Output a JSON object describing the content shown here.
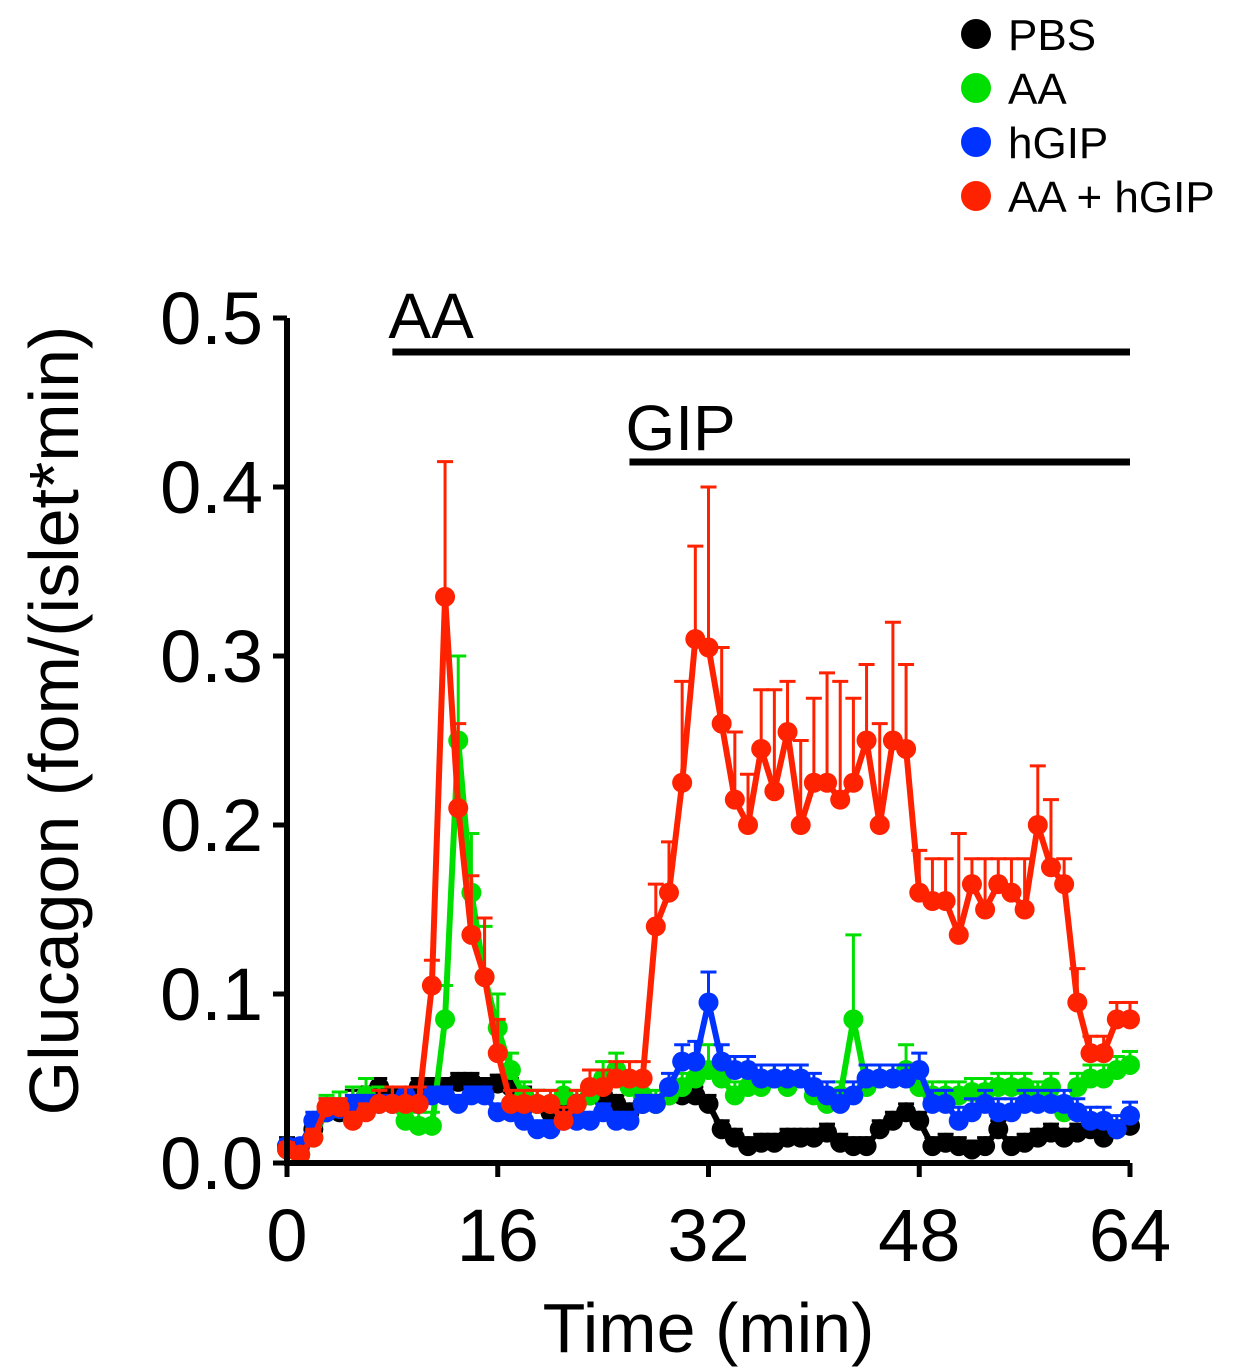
{
  "chart_data": {
    "type": "line",
    "title": "",
    "xlabel": "Time (min)",
    "ylabel": "Glucagon (fom/(islet*min)",
    "xlim": [
      0,
      64
    ],
    "ylim": [
      0,
      0.5
    ],
    "x_ticks": [
      "0",
      "16",
      "32",
      "48",
      "64"
    ],
    "y_ticks": [
      "0.0",
      "0.1",
      "0.2",
      "0.3",
      "0.4",
      "0.5"
    ],
    "grid": false,
    "legend_position": "top-right",
    "treatment_bars": [
      {
        "label": "AA",
        "start": 8,
        "end": 64
      },
      {
        "label": "GIP",
        "start": 26,
        "end": 64
      }
    ],
    "series": [
      {
        "name": "PBS",
        "color": "#000000",
        "x": [
          0,
          1,
          2,
          3,
          4,
          5,
          6,
          7,
          8,
          9,
          10,
          11,
          12,
          13,
          14,
          15,
          16,
          17,
          18,
          19,
          20,
          21,
          22,
          23,
          24,
          25,
          26,
          27,
          28,
          29,
          30,
          31,
          32,
          33,
          34,
          35,
          36,
          37,
          38,
          39,
          40,
          41,
          42,
          43,
          44,
          45,
          46,
          47,
          48,
          49,
          50,
          51,
          52,
          53,
          54,
          55,
          56,
          57,
          58,
          59,
          60,
          61,
          62,
          63,
          64
        ],
        "y": [
          0.01,
          0.005,
          0.02,
          0.03,
          0.03,
          0.035,
          0.04,
          0.045,
          0.04,
          0.04,
          0.045,
          0.045,
          0.045,
          0.048,
          0.048,
          0.045,
          0.047,
          0.045,
          0.04,
          0.035,
          0.03,
          0.035,
          0.035,
          0.04,
          0.04,
          0.035,
          0.03,
          0.035,
          0.035,
          0.04,
          0.04,
          0.04,
          0.035,
          0.02,
          0.015,
          0.01,
          0.012,
          0.012,
          0.015,
          0.015,
          0.015,
          0.018,
          0.012,
          0.01,
          0.01,
          0.02,
          0.025,
          0.03,
          0.025,
          0.01,
          0.012,
          0.01,
          0.008,
          0.01,
          0.02,
          0.01,
          0.012,
          0.015,
          0.018,
          0.015,
          0.018,
          0.02,
          0.015,
          0.02,
          0.022
        ],
        "err": [
          0.005,
          0.005,
          0.005,
          0.008,
          0.008,
          0.008,
          0.005,
          0.005,
          0.005,
          0.005,
          0.005,
          0.005,
          0.005,
          0.005,
          0.005,
          0.005,
          0.005,
          0.005,
          0.005,
          0.008,
          0.008,
          0.005,
          0.005,
          0.005,
          0.005,
          0.005,
          0.005,
          0.005,
          0.005,
          0.005,
          0.005,
          0.005,
          0.005,
          0.005,
          0.005,
          0.005,
          0.005,
          0.005,
          0.005,
          0.005,
          0.005,
          0.005,
          0.005,
          0.005,
          0.005,
          0.005,
          0.005,
          0.005,
          0.005,
          0.005,
          0.005,
          0.005,
          0.005,
          0.005,
          0.005,
          0.005,
          0.005,
          0.005,
          0.005,
          0.005,
          0.005,
          0.005,
          0.005,
          0.005,
          0.005
        ]
      },
      {
        "name": "AA",
        "color": "#00e000",
        "x": [
          0,
          1,
          2,
          3,
          4,
          5,
          6,
          7,
          8,
          9,
          10,
          11,
          12,
          13,
          14,
          15,
          16,
          17,
          18,
          19,
          20,
          21,
          22,
          23,
          24,
          25,
          26,
          27,
          28,
          29,
          30,
          31,
          32,
          33,
          34,
          35,
          36,
          37,
          38,
          39,
          40,
          41,
          42,
          43,
          44,
          45,
          46,
          47,
          48,
          49,
          50,
          51,
          52,
          53,
          54,
          55,
          56,
          57,
          58,
          59,
          60,
          61,
          62,
          63,
          64
        ],
        "y": [
          0.008,
          0.005,
          0.015,
          0.03,
          0.032,
          0.035,
          0.04,
          0.035,
          0.035,
          0.025,
          0.022,
          0.022,
          0.085,
          0.25,
          0.16,
          0.11,
          0.08,
          0.055,
          0.04,
          0.035,
          0.035,
          0.04,
          0.035,
          0.04,
          0.05,
          0.055,
          0.045,
          0.04,
          0.035,
          0.04,
          0.045,
          0.05,
          0.055,
          0.05,
          0.04,
          0.045,
          0.045,
          0.05,
          0.045,
          0.05,
          0.04,
          0.035,
          0.04,
          0.085,
          0.045,
          0.05,
          0.05,
          0.055,
          0.045,
          0.04,
          0.04,
          0.04,
          0.042,
          0.042,
          0.045,
          0.045,
          0.045,
          0.04,
          0.045,
          0.03,
          0.045,
          0.05,
          0.05,
          0.055,
          0.058
        ],
        "err": [
          0.004,
          0.004,
          0.005,
          0.01,
          0.01,
          0.01,
          0.01,
          0.01,
          0.01,
          0.008,
          0.008,
          0.008,
          0.02,
          0.05,
          0.035,
          0.03,
          0.02,
          0.01,
          0.008,
          0.008,
          0.008,
          0.008,
          0.008,
          0.008,
          0.01,
          0.01,
          0.008,
          0.008,
          0.008,
          0.008,
          0.008,
          0.01,
          0.015,
          0.01,
          0.008,
          0.008,
          0.008,
          0.008,
          0.008,
          0.008,
          0.008,
          0.008,
          0.008,
          0.05,
          0.008,
          0.008,
          0.008,
          0.015,
          0.01,
          0.008,
          0.008,
          0.008,
          0.008,
          0.008,
          0.008,
          0.008,
          0.008,
          0.008,
          0.008,
          0.008,
          0.008,
          0.008,
          0.008,
          0.008,
          0.008
        ]
      },
      {
        "name": "hGIP",
        "color": "#0033ff",
        "x": [
          0,
          1,
          2,
          3,
          4,
          5,
          6,
          7,
          8,
          9,
          10,
          11,
          12,
          13,
          14,
          15,
          16,
          17,
          18,
          19,
          20,
          21,
          22,
          23,
          24,
          25,
          26,
          27,
          28,
          29,
          30,
          31,
          32,
          33,
          34,
          35,
          36,
          37,
          38,
          39,
          40,
          41,
          42,
          43,
          44,
          45,
          46,
          47,
          48,
          49,
          50,
          51,
          52,
          53,
          54,
          55,
          56,
          57,
          58,
          59,
          60,
          61,
          62,
          63,
          64
        ],
        "y": [
          0.01,
          0.01,
          0.025,
          0.03,
          0.032,
          0.035,
          0.035,
          0.035,
          0.035,
          0.04,
          0.035,
          0.04,
          0.04,
          0.035,
          0.04,
          0.04,
          0.03,
          0.03,
          0.025,
          0.02,
          0.02,
          0.025,
          0.025,
          0.025,
          0.03,
          0.025,
          0.025,
          0.035,
          0.035,
          0.045,
          0.06,
          0.06,
          0.095,
          0.06,
          0.055,
          0.055,
          0.05,
          0.05,
          0.05,
          0.05,
          0.045,
          0.04,
          0.035,
          0.04,
          0.05,
          0.05,
          0.05,
          0.05,
          0.055,
          0.035,
          0.035,
          0.025,
          0.03,
          0.035,
          0.03,
          0.03,
          0.035,
          0.035,
          0.035,
          0.035,
          0.03,
          0.025,
          0.025,
          0.02,
          0.028
        ],
        "err": [
          0.004,
          0.004,
          0.005,
          0.005,
          0.005,
          0.005,
          0.005,
          0.005,
          0.005,
          0.005,
          0.005,
          0.005,
          0.005,
          0.005,
          0.005,
          0.005,
          0.005,
          0.005,
          0.005,
          0.005,
          0.005,
          0.005,
          0.005,
          0.005,
          0.005,
          0.005,
          0.005,
          0.005,
          0.005,
          0.008,
          0.01,
          0.012,
          0.018,
          0.01,
          0.008,
          0.008,
          0.008,
          0.008,
          0.008,
          0.008,
          0.008,
          0.008,
          0.008,
          0.008,
          0.008,
          0.008,
          0.008,
          0.008,
          0.01,
          0.008,
          0.008,
          0.008,
          0.008,
          0.008,
          0.008,
          0.008,
          0.008,
          0.008,
          0.008,
          0.008,
          0.008,
          0.008,
          0.008,
          0.008,
          0.008
        ]
      },
      {
        "name": "AA + hGIP",
        "color": "#ff2200",
        "x": [
          0,
          1,
          2,
          3,
          4,
          5,
          6,
          7,
          8,
          9,
          10,
          11,
          12,
          13,
          14,
          15,
          16,
          17,
          18,
          19,
          20,
          21,
          22,
          23,
          24,
          25,
          26,
          27,
          28,
          29,
          30,
          31,
          32,
          33,
          34,
          35,
          36,
          37,
          38,
          39,
          40,
          41,
          42,
          43,
          44,
          45,
          46,
          47,
          48,
          49,
          50,
          51,
          52,
          53,
          54,
          55,
          56,
          57,
          58,
          59,
          60,
          61,
          62,
          63,
          64
        ],
        "y": [
          0.008,
          0.005,
          0.015,
          0.033,
          0.033,
          0.025,
          0.03,
          0.035,
          0.035,
          0.035,
          0.035,
          0.105,
          0.335,
          0.21,
          0.135,
          0.11,
          0.065,
          0.035,
          0.035,
          0.035,
          0.035,
          0.025,
          0.035,
          0.045,
          0.045,
          0.05,
          0.05,
          0.05,
          0.14,
          0.16,
          0.225,
          0.31,
          0.305,
          0.26,
          0.215,
          0.2,
          0.245,
          0.22,
          0.255,
          0.2,
          0.225,
          0.225,
          0.215,
          0.225,
          0.25,
          0.2,
          0.25,
          0.245,
          0.16,
          0.155,
          0.155,
          0.135,
          0.165,
          0.15,
          0.165,
          0.16,
          0.15,
          0.2,
          0.175,
          0.165,
          0.095,
          0.065,
          0.065,
          0.085,
          0.085
        ],
        "err": [
          0.004,
          0.004,
          0.005,
          0.005,
          0.005,
          0.005,
          0.005,
          0.008,
          0.01,
          0.01,
          0.01,
          0.015,
          0.08,
          0.05,
          0.035,
          0.035,
          0.02,
          0.008,
          0.008,
          0.008,
          0.008,
          0.008,
          0.008,
          0.01,
          0.01,
          0.01,
          0.01,
          0.01,
          0.025,
          0.03,
          0.06,
          0.055,
          0.095,
          0.045,
          0.04,
          0.03,
          0.035,
          0.06,
          0.03,
          0.05,
          0.05,
          0.065,
          0.07,
          0.05,
          0.045,
          0.06,
          0.07,
          0.05,
          0.025,
          0.025,
          0.025,
          0.06,
          0.015,
          0.03,
          0.015,
          0.02,
          0.03,
          0.035,
          0.04,
          0.015,
          0.02,
          0.01,
          0.01,
          0.01,
          0.01
        ]
      }
    ]
  }
}
